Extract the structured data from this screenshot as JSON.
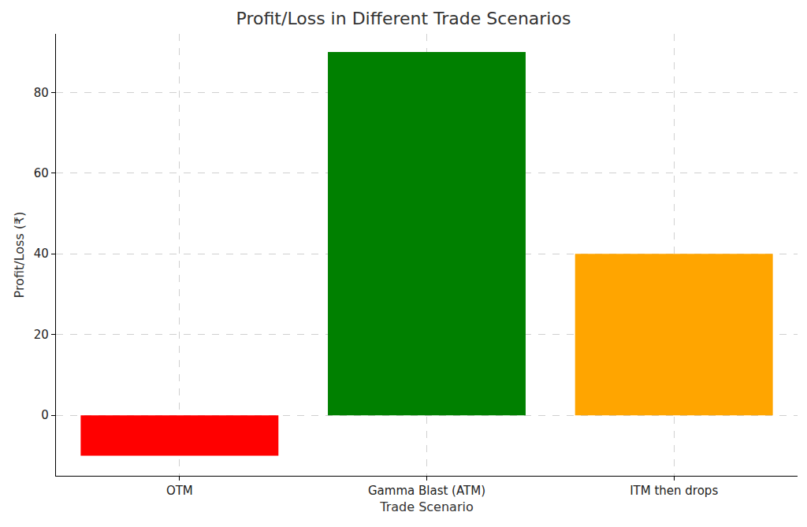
{
  "chart_data": {
    "type": "bar",
    "title": "Profit/Loss in Different Trade Scenarios",
    "x_label": "Trade Scenario",
    "y_label": "Profit/Loss (₹)",
    "categories": [
      "OTM",
      "Gamma Blast (ATM)",
      "ITM then drops"
    ],
    "values": [
      -10,
      90,
      40
    ],
    "colors": [
      "#ff0000",
      "#008000",
      "#ffa500"
    ],
    "ylim": [
      -15,
      94.5
    ],
    "yticks": [
      0,
      20,
      40,
      60,
      80
    ],
    "grid": true
  }
}
